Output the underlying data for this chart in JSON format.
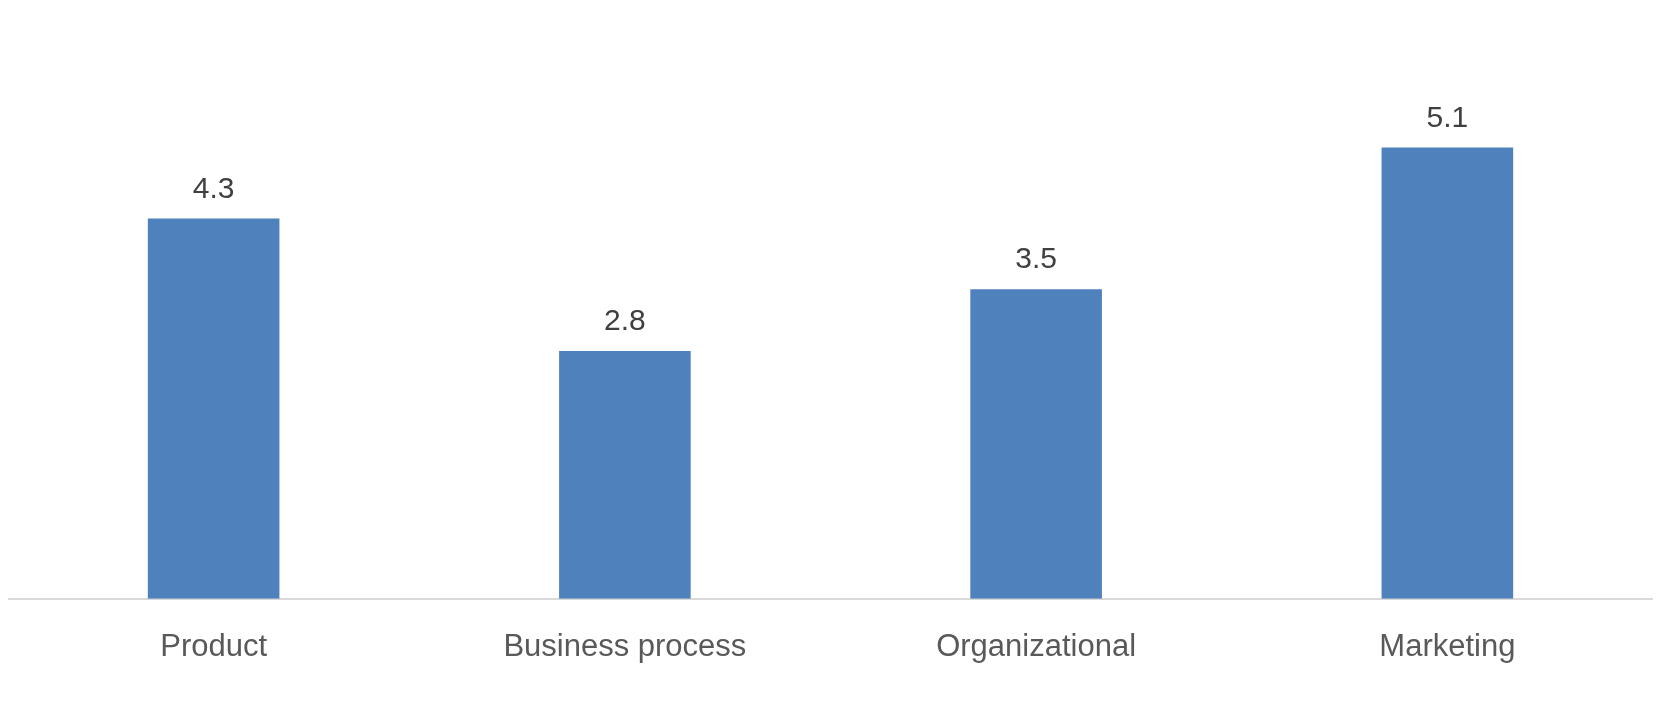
{
  "chart_data": {
    "type": "bar",
    "categories": [
      "Product",
      "Business process",
      "Organizational",
      "Marketing"
    ],
    "values": [
      4.3,
      2.8,
      3.5,
      5.1
    ],
    "color": "#4f81bd",
    "data_labels": true,
    "grid": false,
    "legend": false
  }
}
